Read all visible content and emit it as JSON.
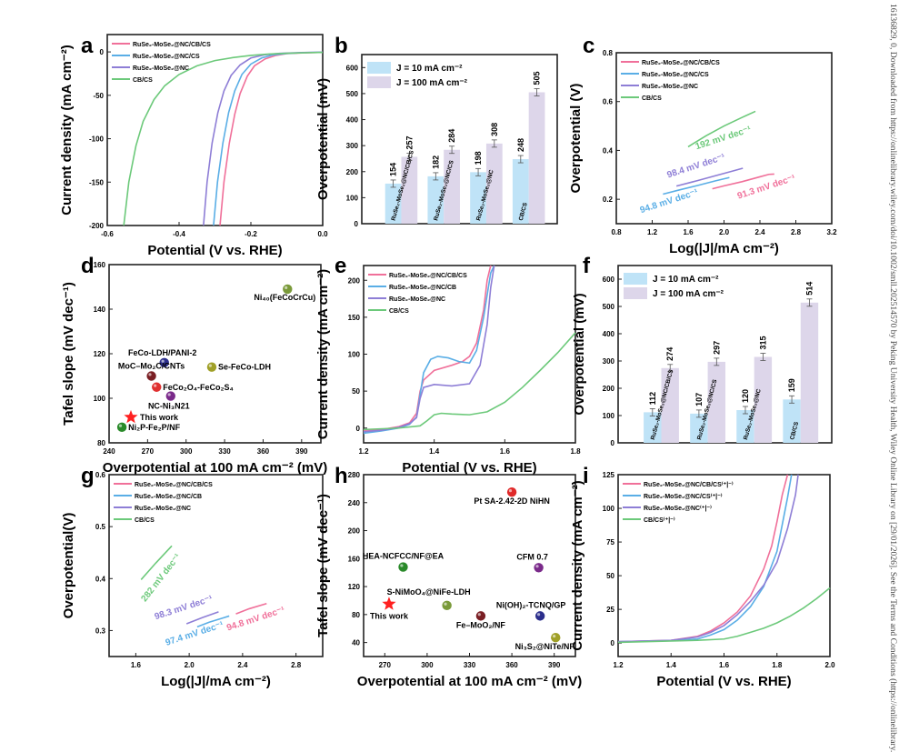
{
  "sidebar_text": "16136829, 0, Downloaded from https://onlinelibrary.wiley.com/doi/10.1002/smll.202514570 by Peking University Health, Wiley Online Library on [29/01/2026]. See the Terms and Conditions (https://onlinelibrary.",
  "colors": {
    "pink": "#f0709a",
    "blue": "#5aaee6",
    "purple": "#8e7ed6",
    "green": "#6cc97a",
    "bar10": "#bfe3f7",
    "bar100": "#ddd6ea"
  },
  "chart_data": [
    {
      "panel": "a",
      "type": "line",
      "xlabel": "Potential (V vs. RHE)",
      "ylabel": "Current density (mA cm⁻²)",
      "xlim": [
        -0.6,
        0.0
      ],
      "ylim": [
        -200,
        20
      ],
      "xticks": [
        -0.6,
        -0.4,
        -0.2,
        0.0
      ],
      "xtick_labels": [
        "-0.6",
        "-0.4",
        "-0.2",
        "0.0"
      ],
      "yticks": [
        0,
        -50,
        -100,
        -150,
        -200
      ],
      "ytick_labels": [
        "0",
        "-50",
        "-100",
        "-150",
        "-200"
      ],
      "legend": "top-left",
      "series": [
        {
          "name": "RuSe₂-MoSe₂@NC/CB/CS",
          "color": "pink",
          "x": [
            -0.286,
            -0.275,
            -0.26,
            -0.245,
            -0.23,
            -0.21,
            -0.19,
            -0.16,
            -0.13,
            -0.1,
            -0.05,
            0.0
          ],
          "y": [
            -200,
            -150,
            -105,
            -72,
            -48,
            -28,
            -16,
            -8,
            -4,
            -2,
            -1,
            -0.5
          ]
        },
        {
          "name": "RuSe₂-MoSe₂@NC/CS",
          "color": "blue",
          "x": [
            -0.304,
            -0.293,
            -0.278,
            -0.262,
            -0.245,
            -0.225,
            -0.2,
            -0.17,
            -0.14,
            -0.1,
            -0.05,
            0.0
          ],
          "y": [
            -200,
            -150,
            -105,
            -70,
            -45,
            -26,
            -14,
            -7,
            -3.5,
            -1.8,
            -0.8,
            -0.4
          ]
        },
        {
          "name": "RuSe₂-MoSe₂@NC",
          "color": "purple",
          "x": [
            -0.332,
            -0.322,
            -0.308,
            -0.292,
            -0.275,
            -0.255,
            -0.23,
            -0.2,
            -0.16,
            -0.12,
            -0.06,
            0.0
          ],
          "y": [
            -200,
            -150,
            -105,
            -70,
            -45,
            -27,
            -15,
            -7,
            -3.2,
            -1.6,
            -0.7,
            -0.3
          ]
        },
        {
          "name": "CB/CS",
          "color": "green",
          "x": [
            -0.554,
            -0.54,
            -0.52,
            -0.5,
            -0.47,
            -0.44,
            -0.4,
            -0.35,
            -0.3,
            -0.25,
            -0.2,
            -0.15,
            -0.1,
            0.0
          ],
          "y": [
            -200,
            -150,
            -108,
            -80,
            -55,
            -39,
            -26,
            -16,
            -10,
            -6.5,
            -4,
            -2.5,
            -1.5,
            -0.5
          ]
        }
      ]
    },
    {
      "panel": "b",
      "type": "bar",
      "ylabel": "Overpotential (mV)",
      "ylim": [
        0,
        650
      ],
      "yticks": [
        0,
        100,
        200,
        300,
        400,
        500,
        600
      ],
      "categories": [
        "RuSe₂-MoSe₂@NC/CB/CS",
        "RuSe₂-MoSe₂@NC/CS",
        "RuSe₂-MoSe₂@NC",
        "CB/CS"
      ],
      "legend": "top-left",
      "series": [
        {
          "name": "J = 10 mA cm⁻²",
          "color": "bar10",
          "values": [
            154,
            182,
            198,
            248
          ]
        },
        {
          "name": "J = 100 mA cm⁻²",
          "color": "bar100",
          "values": [
            257,
            284,
            308,
            505
          ]
        }
      ]
    },
    {
      "panel": "c",
      "type": "line",
      "xlabel": "Log(|J|/mA cm⁻²)",
      "ylabel": "Overpotential (V)",
      "xlim": [
        0.8,
        3.2
      ],
      "ylim": [
        0.1,
        0.8
      ],
      "xticks": [
        0.8,
        1.2,
        1.6,
        2.0,
        2.4,
        2.8,
        3.2
      ],
      "xtick_labels": [
        "0.8",
        "1.2",
        "1.6",
        "2.0",
        "2.4",
        "2.8",
        "3.2"
      ],
      "yticks": [
        0.2,
        0.4,
        0.6,
        0.8
      ],
      "ytick_labels": [
        "0.2",
        "0.4",
        "0.6",
        "0.8"
      ],
      "legend": "top-left",
      "series": [
        {
          "name": "RuSe₂-MoSe₂@NC/CB/CS",
          "color": "pink",
          "x": [
            1.87,
            2.0,
            2.2,
            2.4,
            2.5,
            2.56
          ],
          "y": [
            0.243,
            0.255,
            0.272,
            0.292,
            0.302,
            0.303
          ],
          "annotation": "91.3 mV dec⁻¹"
        },
        {
          "name": "RuSe₂-MoSe₂@NC/CS",
          "color": "blue",
          "x": [
            1.32,
            1.5,
            1.7,
            1.9,
            2.06
          ],
          "y": [
            0.221,
            0.238,
            0.256,
            0.275,
            0.289
          ],
          "annotation": "94.8 mV dec⁻¹"
        },
        {
          "name": "RuSe₂-MoSe₂@NC",
          "color": "purple",
          "x": [
            1.47,
            1.7,
            1.9,
            2.1,
            2.21
          ],
          "y": [
            0.254,
            0.276,
            0.296,
            0.316,
            0.327
          ],
          "annotation": "98.4 mV dec⁻¹"
        },
        {
          "name": "CB/CS",
          "color": "green",
          "x": [
            1.6,
            1.8,
            2.0,
            2.2,
            2.35
          ],
          "y": [
            0.415,
            0.46,
            0.5,
            0.535,
            0.56
          ],
          "annotation": "192 mV dec⁻¹"
        }
      ]
    },
    {
      "panel": "d",
      "type": "scatter",
      "xlabel": "Overpotential at 100 mA cm⁻² (mV)",
      "ylabel": "Tafel slope (mV dec⁻¹)",
      "xlim": [
        240,
        405
      ],
      "ylim": [
        80,
        160
      ],
      "xticks": [
        240,
        270,
        300,
        330,
        360,
        390
      ],
      "yticks": [
        80,
        100,
        120,
        140,
        160
      ],
      "points": [
        {
          "label": "Ni₄₀(FeCoCrCu)",
          "x": 379,
          "y": 149,
          "color": "#7a9a3a"
        },
        {
          "label": "FeCo-LDH/PANI-2",
          "x": 283,
          "y": 116,
          "color": "#2c2f8c"
        },
        {
          "label": "Se-FeCo-LDH",
          "x": 320,
          "y": 114,
          "color": "#a0a028"
        },
        {
          "label": "MoC–Mo₂C/CNTs",
          "x": 273,
          "y": 110,
          "color": "#7a1f24"
        },
        {
          "label": "FeCo₂O₄-FeCo₂S₄",
          "x": 277,
          "y": 105,
          "color": "#e03030"
        },
        {
          "label": "NC-Ni₃N21",
          "x": 288,
          "y": 101,
          "color": "#7a2a8a"
        },
        {
          "label": "This work",
          "x": 257,
          "y": 91.5,
          "color": "#ff2020",
          "marker": "star"
        },
        {
          "label": "Ni₂P-Fe₂P/NF",
          "x": 250,
          "y": 87,
          "color": "#2a8a2a"
        }
      ]
    },
    {
      "panel": "e",
      "type": "line",
      "xlabel": "Potential (V vs. RHE)",
      "ylabel": "Current density (mA cm⁻²)",
      "xlim": [
        1.2,
        1.8
      ],
      "ylim": [
        -20,
        220
      ],
      "xticks": [
        1.2,
        1.4,
        1.6,
        1.8
      ],
      "xtick_labels": [
        "1.2",
        "1.4",
        "1.6",
        "1.8"
      ],
      "yticks": [
        0,
        50,
        100,
        150,
        200
      ],
      "legend": "top-left",
      "series": [
        {
          "name": "RuSe₂-MoSe₂@NC/CB/CS",
          "color": "pink",
          "x": [
            1.2,
            1.25,
            1.3,
            1.33,
            1.35,
            1.36,
            1.37,
            1.4,
            1.45,
            1.48,
            1.5,
            1.52,
            1.54,
            1.55,
            1.56
          ],
          "y": [
            -3,
            -2,
            2,
            7,
            20,
            50,
            65,
            78,
            85,
            90,
            97,
            115,
            160,
            200,
            225
          ]
        },
        {
          "name": "RuSe₂-MoSe₂@NC/CB",
          "color": "blue",
          "x": [
            1.2,
            1.25,
            1.3,
            1.33,
            1.35,
            1.36,
            1.37,
            1.39,
            1.41,
            1.44,
            1.47,
            1.5,
            1.52,
            1.54,
            1.56,
            1.57
          ],
          "y": [
            -7,
            -4,
            0,
            5,
            15,
            45,
            75,
            93,
            97,
            95,
            90,
            88,
            105,
            150,
            210,
            225
          ]
        },
        {
          "name": "RuSe₂-MoSe₂@NC",
          "color": "purple",
          "x": [
            1.2,
            1.25,
            1.3,
            1.33,
            1.35,
            1.36,
            1.37,
            1.4,
            1.45,
            1.5,
            1.53,
            1.55,
            1.56,
            1.57
          ],
          "y": [
            -5,
            -3,
            1,
            6,
            14,
            40,
            55,
            59,
            57,
            60,
            85,
            140,
            190,
            225
          ]
        },
        {
          "name": "CB/CS",
          "color": "green",
          "x": [
            1.2,
            1.3,
            1.36,
            1.38,
            1.4,
            1.42,
            1.45,
            1.5,
            1.55,
            1.6,
            1.65,
            1.7,
            1.75,
            1.8
          ],
          "y": [
            -2,
            0,
            3,
            10,
            18,
            20,
            19,
            18,
            22,
            35,
            55,
            78,
            102,
            129
          ]
        }
      ]
    },
    {
      "panel": "f",
      "type": "bar",
      "ylabel": "Overpotential (mV)",
      "ylim": [
        0,
        650
      ],
      "yticks": [
        0,
        100,
        200,
        300,
        400,
        500,
        600
      ],
      "categories": [
        "RuSe₂-MoSe₂@NC/CB/CS",
        "RuSe₂-MoSe₂@NC/CS",
        "RuSe₂-MoSe₂@NC",
        "CB/CS"
      ],
      "legend": "top-left",
      "series": [
        {
          "name": "J = 10 mA cm⁻²",
          "color": "bar10",
          "values": [
            112,
            107,
            120,
            159
          ]
        },
        {
          "name": "J = 100 mA cm⁻²",
          "color": "bar100",
          "values": [
            274,
            297,
            315,
            514
          ]
        }
      ]
    },
    {
      "panel": "g",
      "type": "line",
      "xlabel": "Log(|J|/mA cm⁻²)",
      "ylabel": "Overpotential(V)",
      "xlim": [
        1.4,
        3.0
      ],
      "ylim": [
        0.25,
        0.6
      ],
      "xticks": [
        1.6,
        2.0,
        2.4,
        2.8
      ],
      "xtick_labels": [
        "1.6",
        "2.0",
        "2.4",
        "2.8"
      ],
      "yticks": [
        0.3,
        0.4,
        0.5,
        0.6
      ],
      "ytick_labels": [
        "0.3",
        "0.4",
        "0.5",
        "0.6"
      ],
      "legend": "top-left",
      "series": [
        {
          "name": "RuSe₂-MoSe₂@NC/CB/CS",
          "color": "pink",
          "x": [
            2.35,
            2.45,
            2.58
          ],
          "y": [
            0.332,
            0.342,
            0.352
          ],
          "annotation": "94.8 mV dec⁻¹"
        },
        {
          "name": "RuSe₂-MoSe₂@NC/CB",
          "color": "blue",
          "x": [
            2.06,
            2.15,
            2.25,
            2.3
          ],
          "y": [
            0.307,
            0.316,
            0.324,
            0.328
          ],
          "annotation": "97.4 mV dec⁻¹"
        },
        {
          "name": "RuSe₂-MoSe₂@NC",
          "color": "purple",
          "x": [
            1.98,
            2.1,
            2.22
          ],
          "y": [
            0.313,
            0.325,
            0.336
          ],
          "annotation": "98.3 mV dec⁻¹"
        },
        {
          "name": "CB/CS",
          "color": "green",
          "x": [
            1.64,
            1.75,
            1.87
          ],
          "y": [
            0.398,
            0.43,
            0.463
          ],
          "annotation": "282 mV dec⁻¹"
        }
      ]
    },
    {
      "panel": "h",
      "type": "scatter",
      "xlabel": "Overpotential at 100 mA cm⁻² (mV)",
      "ylabel": "Tafel slope (mV dec⁻¹)",
      "xlim": [
        255,
        405
      ],
      "ylim": [
        20,
        280
      ],
      "xticks": [
        270,
        300,
        330,
        360,
        390
      ],
      "yticks": [
        40,
        80,
        120,
        160,
        200,
        240,
        280
      ],
      "points": [
        {
          "label": "Pt SA-2.42-2D NiHN",
          "x": 360,
          "y": 255,
          "color": "#e02a2a"
        },
        {
          "label": "HEA-NCFCC/NF@EA",
          "x": 283,
          "y": 148,
          "color": "#2a8a2a"
        },
        {
          "label": "CFM 0.7",
          "x": 379,
          "y": 147,
          "color": "#7a2a8a"
        },
        {
          "label": "S-NiMoO₄@NiFe-LDH",
          "x": 314,
          "y": 93,
          "color": "#7a9a3a"
        },
        {
          "label": "This work",
          "x": 273,
          "y": 95,
          "color": "#ff2020",
          "marker": "star"
        },
        {
          "label": "Fe–MoO₂/NF",
          "x": 338,
          "y": 78,
          "color": "#7a1f24"
        },
        {
          "label": "Ni(OH)₂-TCNQ/GP",
          "x": 380,
          "y": 78,
          "color": "#2c2f8c"
        },
        {
          "label": "Ni₃S₂@NiTe/NF",
          "x": 391,
          "y": 47,
          "color": "#a0a028"
        }
      ]
    },
    {
      "panel": "i",
      "type": "line",
      "xlabel": "Potential (V vs. RHE)",
      "ylabel": "Current density (mA cm⁻²)",
      "xlim": [
        1.2,
        2.0
      ],
      "ylim": [
        -10,
        125
      ],
      "xticks": [
        1.2,
        1.4,
        1.6,
        1.8,
        2.0
      ],
      "xtick_labels": [
        "1.2",
        "1.4",
        "1.6",
        "1.8",
        "2.0"
      ],
      "yticks": [
        0,
        25,
        50,
        75,
        100,
        125
      ],
      "legend": "top-left",
      "series": [
        {
          "name": "RuSe₂-MoSe₂@NC/CB/CS⁽⁺|⁻⁾",
          "color": "pink",
          "x": [
            1.2,
            1.4,
            1.5,
            1.55,
            1.6,
            1.65,
            1.7,
            1.75,
            1.78,
            1.8,
            1.82,
            1.84
          ],
          "y": [
            1,
            2,
            5,
            9,
            15,
            23,
            35,
            55,
            72,
            90,
            110,
            125
          ]
        },
        {
          "name": "RuSe₂-MoSe₂@NC/CS⁽⁺|⁻⁾",
          "color": "blue",
          "x": [
            1.2,
            1.4,
            1.5,
            1.55,
            1.6,
            1.65,
            1.7,
            1.75,
            1.8,
            1.82,
            1.84,
            1.855
          ],
          "y": [
            1,
            1.8,
            3,
            6,
            10,
            17,
            27,
            42,
            68,
            88,
            108,
            125
          ]
        },
        {
          "name": "RuSe₂-MoSe₂@NC⁽⁺|⁻⁾",
          "color": "purple",
          "x": [
            1.2,
            1.4,
            1.5,
            1.55,
            1.6,
            1.65,
            1.7,
            1.75,
            1.8,
            1.84,
            1.87,
            1.88
          ],
          "y": [
            1,
            2,
            4.5,
            8,
            13,
            21,
            31,
            43,
            60,
            85,
            110,
            125
          ]
        },
        {
          "name": "CB/CS⁽⁺|⁻⁾",
          "color": "green",
          "x": [
            1.2,
            1.4,
            1.5,
            1.6,
            1.65,
            1.7,
            1.75,
            1.8,
            1.85,
            1.9,
            1.95,
            2.0
          ],
          "y": [
            0.5,
            1.5,
            2,
            3,
            5,
            8,
            11,
            15,
            20,
            26,
            33,
            41
          ]
        }
      ]
    }
  ]
}
